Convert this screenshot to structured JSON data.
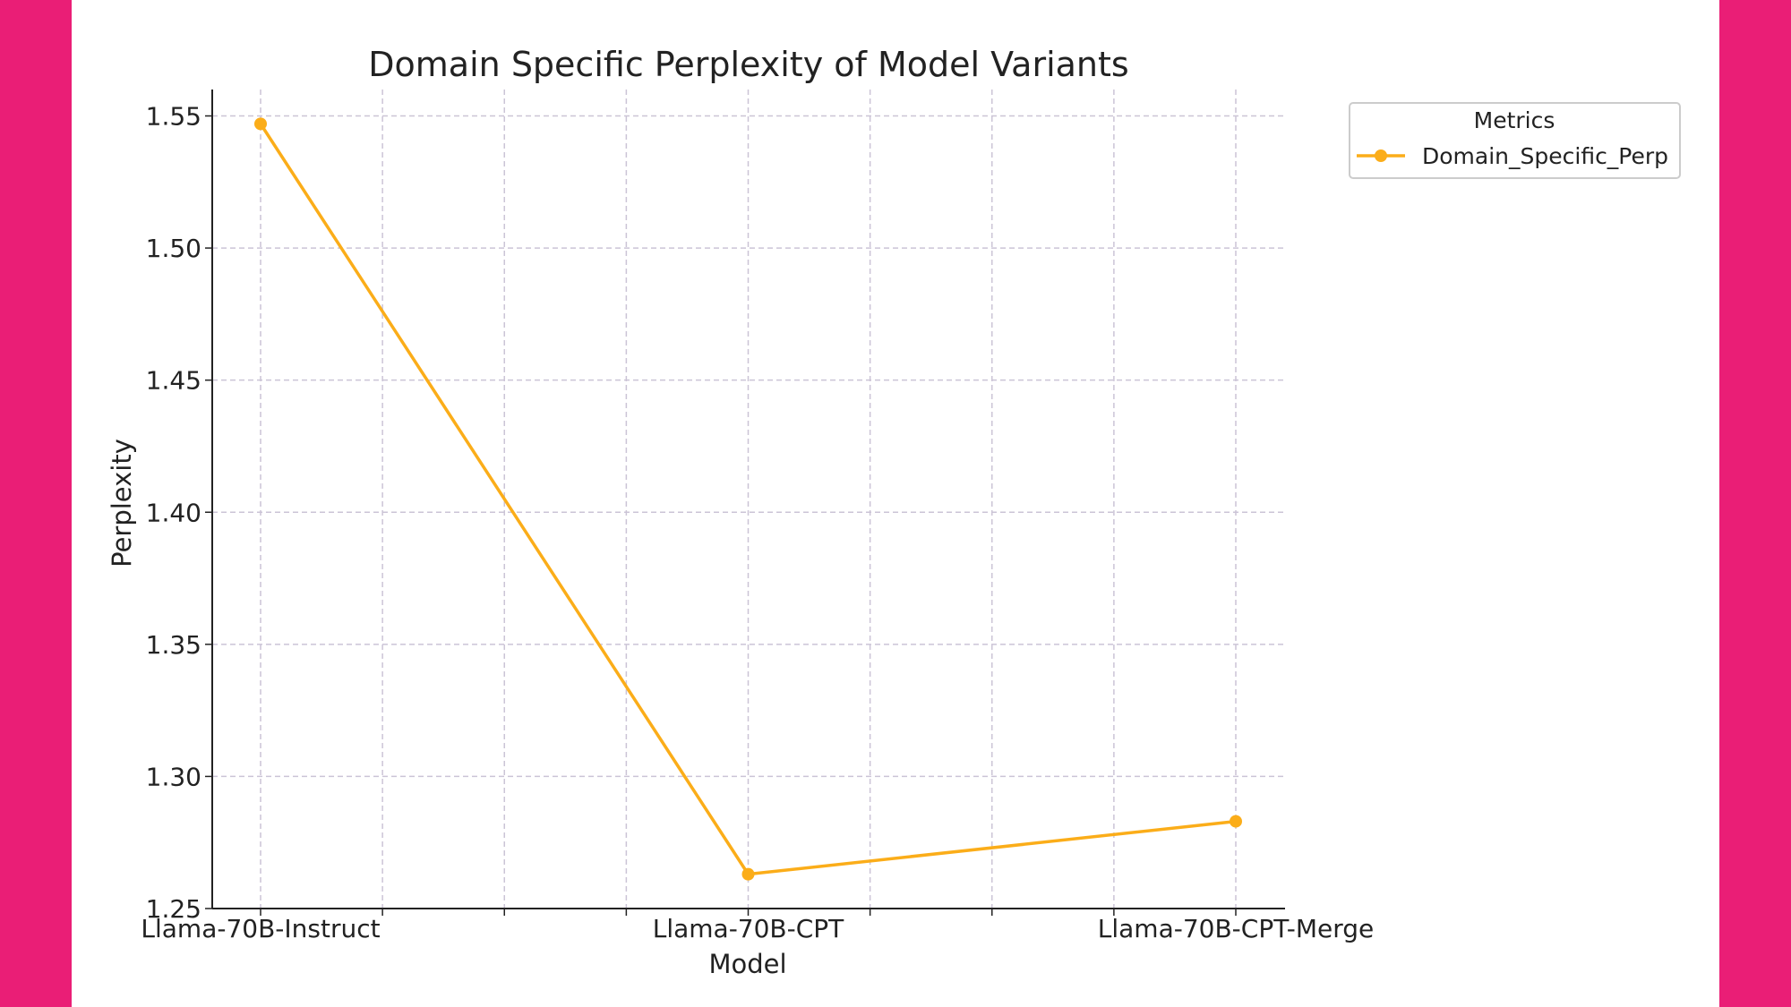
{
  "colors": {
    "band": "#EA1E76",
    "background": "#FFFFFF",
    "series": "#FBAD19",
    "grid": "#CBC4D6",
    "axis": "#222222"
  },
  "chart_data": {
    "type": "line",
    "title": "Domain Specific Perplexity of Model Variants",
    "xlabel": "Model",
    "ylabel": "Perplexity",
    "categories": [
      "Llama-70B-Instruct",
      "Llama-70B-CPT",
      "Llama-70B-CPT-Merge"
    ],
    "series": [
      {
        "name": "Domain_Specific_Perp",
        "values": [
          1.547,
          1.263,
          1.283
        ]
      }
    ],
    "ylim": [
      1.25,
      1.56
    ],
    "yticks": [
      1.25,
      1.3,
      1.35,
      1.4,
      1.45,
      1.5,
      1.55
    ],
    "ytick_labels": [
      "1.25",
      "1.30",
      "1.35",
      "1.40",
      "1.45",
      "1.50",
      "1.55"
    ],
    "grid": true,
    "grid_style": "dashed",
    "legend": {
      "title": "Metrics",
      "placement": "outside-top-right"
    }
  }
}
